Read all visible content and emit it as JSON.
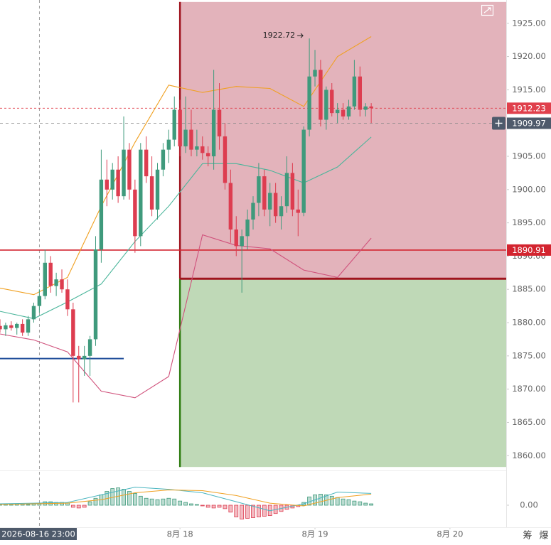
{
  "chart_data": {
    "type": "candlestick",
    "x": [
      "2026-08-16 16:00",
      "2026-08-16 17:00",
      "2026-08-16 18:00",
      "2026-08-16 19:00",
      "2026-08-16 20:00",
      "2026-08-16 21:00",
      "2026-08-16 22:00",
      "2026-08-16 23:00",
      "2026-08-17 00:00",
      "2026-08-17 01:00",
      "2026-08-17 02:00",
      "2026-08-17 03:00",
      "2026-08-17 04:00",
      "2026-08-17 05:00",
      "2026-08-17 06:00",
      "2026-08-17 07:00",
      "2026-08-17 08:00",
      "2026-08-17 09:00",
      "2026-08-17 10:00",
      "2026-08-17 11:00",
      "2026-08-17 12:00",
      "2026-08-17 13:00",
      "2026-08-17 14:00",
      "2026-08-17 15:00",
      "2026-08-17 16:00",
      "2026-08-17 17:00",
      "2026-08-17 18:00",
      "2026-08-17 19:00",
      "2026-08-17 20:00",
      "2026-08-17 21:00",
      "2026-08-17 22:00",
      "2026-08-17 23:00",
      "2026-08-18 00:00",
      "2026-08-18 01:00",
      "2026-08-18 02:00",
      "2026-08-18 03:00",
      "2026-08-18 04:00",
      "2026-08-18 05:00",
      "2026-08-18 06:00",
      "2026-08-18 07:00",
      "2026-08-18 08:00",
      "2026-08-18 09:00",
      "2026-08-18 10:00",
      "2026-08-18 11:00",
      "2026-08-18 12:00",
      "2026-08-18 13:00",
      "2026-08-18 14:00",
      "2026-08-18 15:00",
      "2026-08-18 16:00",
      "2026-08-18 17:00",
      "2026-08-18 18:00",
      "2026-08-18 19:00",
      "2026-08-18 20:00",
      "2026-08-18 21:00",
      "2026-08-18 22:00",
      "2026-08-18 23:00",
      "2026-08-19 00:00",
      "2026-08-19 01:00",
      "2026-08-19 02:00",
      "2026-08-19 03:00",
      "2026-08-19 04:00",
      "2026-08-19 05:00",
      "2026-08-19 06:00",
      "2026-08-19 07:00",
      "2026-08-19 08:00",
      "2026-08-19 09:00",
      "2026-08-19 10:00"
    ],
    "open": [
      1879.5,
      1879.0,
      1879.6,
      1879.2,
      1879.8,
      1878.5,
      1880.5,
      1882.5,
      1884.0,
      1889.0,
      1885.5,
      1886.5,
      1885.0,
      1882.0,
      1875.0,
      1874.5,
      1875.0,
      1877.5,
      1891.0,
      1901.5,
      1900.0,
      1903.0,
      1899.0,
      1906.0,
      1900.0,
      1893.0,
      1906.0,
      1902.0,
      1897.0,
      1903.0,
      1906.0,
      1907.5,
      1912.0,
      1906.5,
      1909.0,
      1906.0,
      1906.5,
      1905.5,
      1905.0,
      1912.0,
      1908.0,
      1901.0,
      1894.0,
      1891.5,
      1893.0,
      1895.5,
      1898.0,
      1902.0,
      1897.0,
      1899.5,
      1896.0,
      1897.5,
      1902.5,
      1897.0,
      1896.5,
      1909.0,
      1917.0,
      1918.0,
      1910.5,
      1915.0,
      1911.5,
      1912.0,
      1911.0,
      1912.5,
      1917.0,
      1912.0,
      1912.5
    ],
    "high": [
      1880.5,
      1880.0,
      1880.2,
      1880.0,
      1880.5,
      1881.0,
      1883.0,
      1885.0,
      1891.0,
      1890.0,
      1887.5,
      1888.0,
      1886.5,
      1883.0,
      1876.5,
      1876.5,
      1878.0,
      1893.0,
      1906.0,
      1904.5,
      1904.0,
      1905.0,
      1911.0,
      1907.0,
      1901.5,
      1907.0,
      1908.0,
      1905.0,
      1904.0,
      1907.0,
      1909.0,
      1914.0,
      1913.5,
      1914.0,
      1912.0,
      1909.0,
      1908.0,
      1906.5,
      1918.0,
      1916.0,
      1910.0,
      1903.0,
      1896.0,
      1894.0,
      1897.0,
      1899.0,
      1904.0,
      1903.0,
      1901.0,
      1901.0,
      1899.0,
      1905.0,
      1904.0,
      1900.0,
      1909.5,
      1922.72,
      1921.0,
      1919.5,
      1915.5,
      1916.0,
      1913.0,
      1913.0,
      1913.5,
      1919.5,
      1918.5,
      1913.0,
      1913.0
    ],
    "low": [
      1878.5,
      1878.0,
      1878.8,
      1878.2,
      1878.0,
      1878.0,
      1880.0,
      1881.5,
      1883.5,
      1884.5,
      1884.0,
      1884.5,
      1881.0,
      1868.0,
      1868.0,
      1872.0,
      1872.0,
      1876.5,
      1889.0,
      1897.5,
      1898.5,
      1898.0,
      1898.5,
      1898.5,
      1890.5,
      1891.5,
      1901.0,
      1896.0,
      1895.5,
      1902.0,
      1904.0,
      1906.5,
      1905.0,
      1905.5,
      1905.0,
      1905.0,
      1904.5,
      1903.5,
      1903.0,
      1906.0,
      1900.0,
      1892.0,
      1890.0,
      1884.5,
      1891.0,
      1894.0,
      1896.0,
      1896.0,
      1894.5,
      1895.0,
      1894.0,
      1896.5,
      1896.0,
      1893.0,
      1896.0,
      1908.0,
      1915.5,
      1909.5,
      1909.0,
      1911.0,
      1910.0,
      1910.5,
      1910.5,
      1912.0,
      1911.0,
      1911.0,
      1910.0
    ],
    "close": [
      1879.0,
      1879.6,
      1879.2,
      1879.8,
      1878.5,
      1880.5,
      1882.5,
      1884.0,
      1889.0,
      1885.5,
      1886.5,
      1885.0,
      1882.0,
      1875.0,
      1874.5,
      1875.0,
      1877.5,
      1891.0,
      1901.5,
      1900.0,
      1903.0,
      1899.0,
      1906.0,
      1900.0,
      1893.0,
      1906.0,
      1902.0,
      1897.0,
      1903.0,
      1906.0,
      1907.5,
      1912.0,
      1906.5,
      1909.0,
      1906.0,
      1906.5,
      1905.5,
      1905.0,
      1912.0,
      1908.0,
      1901.0,
      1894.0,
      1891.5,
      1893.0,
      1895.5,
      1898.0,
      1902.0,
      1897.0,
      1899.5,
      1896.0,
      1897.5,
      1902.5,
      1897.0,
      1896.5,
      1909.0,
      1917.0,
      1918.0,
      1910.5,
      1915.0,
      1911.5,
      1912.0,
      1911.0,
      1912.5,
      1917.0,
      1912.0,
      1912.5,
      1912.23
    ],
    "up_color": "#3f9a7c",
    "down_color": "#dd3d50",
    "xlim": [
      "2026-08-16 16:00",
      "2026-08-20 10:00"
    ],
    "xticks": [
      {
        "value": "2026-08-18 00:00",
        "label": "8月 18"
      },
      {
        "value": "2026-08-19 00:00",
        "label": "8月 19"
      },
      {
        "value": "2026-08-20 00:00",
        "label": "8月 20"
      }
    ],
    "ylim": [
      1858,
      1928.5
    ],
    "yticks": [
      {
        "value": 1860,
        "label": "1860.00"
      },
      {
        "value": 1865,
        "label": "1865.00"
      },
      {
        "value": 1870,
        "label": "1870.00"
      },
      {
        "value": 1875,
        "label": "1875.00"
      },
      {
        "value": 1880,
        "label": "1880.00"
      },
      {
        "value": 1885,
        "label": "1885.00"
      },
      {
        "value": 1890,
        "label": "1890.00"
      },
      {
        "value": 1895,
        "label": "1895.00"
      },
      {
        "value": 1900,
        "label": "1900.00"
      },
      {
        "value": 1905,
        "label": "1905.00"
      },
      {
        "value": 1910,
        "label": "1910.00"
      },
      {
        "value": 1915,
        "label": "1915.00"
      },
      {
        "value": 1920,
        "label": "1920.00"
      },
      {
        "value": 1925,
        "label": "1925.00"
      }
    ],
    "grid": false,
    "indicator_x": [
      "2026-08-16 16:00",
      "2026-08-16 22:00",
      "2026-08-17 04:00",
      "2026-08-17 10:00",
      "2026-08-17 16:00",
      "2026-08-17 22:00",
      "2026-08-18 04:00",
      "2026-08-18 10:00",
      "2026-08-18 16:00",
      "2026-08-18 22:00",
      "2026-08-19 04:00",
      "2026-08-19 10:00"
    ],
    "bands": [
      {
        "color": "#f0a020",
        "values": [
          1885.2,
          1884.2,
          1886.8,
          1897.5,
          1907.1,
          1915.7,
          1914.6,
          1915.5,
          1915.2,
          1912.5,
          1920.0,
          1923.0
        ]
      },
      {
        "color": "#49b59a",
        "values": [
          1881.7,
          1880.6,
          1883.1,
          1885.8,
          1892.2,
          1897.5,
          1903.9,
          1903.9,
          1902.9,
          1901.0,
          1903.4,
          1907.9
        ]
      },
      {
        "color": "#d0527c",
        "values": [
          1878.3,
          1877.4,
          1875.6,
          1869.7,
          1868.7,
          1871.9,
          1893.2,
          1891.6,
          1891.1,
          1887.9,
          1886.8,
          1892.7
        ]
      }
    ],
    "position": {
      "start": "2026-08-18 00:00",
      "stop": 1928.2,
      "entry": 1886.6,
      "target": 1858.3,
      "stop_color": "#e3b3bb",
      "target_color": "#bfd9b7",
      "stop_edge": "#a0141e",
      "target_edge": "#2f7d12"
    },
    "support_line": {
      "value": 1874.6,
      "end": "2026-08-17 14:00",
      "color": "#1f4e9a"
    },
    "price_line": {
      "value": 1890.91,
      "color": "#d3242f"
    },
    "last_price": {
      "value": 1912.23,
      "color": "#e0404c"
    },
    "crosshair": {
      "x": "2026-08-16 23:00",
      "y": 1909.97
    },
    "high_label": 1922.72,
    "macd": {
      "ylim": [
        -4,
        4
      ],
      "yticks": [
        {
          "value": 0,
          "label": "0.00"
        }
      ],
      "histogram": [
        0.1,
        0.15,
        0.1,
        0.2,
        0.15,
        0.1,
        0.2,
        0.3,
        0.5,
        0.5,
        0.4,
        0.4,
        0.3,
        -0.3,
        -0.4,
        -0.3,
        0.5,
        1.0,
        1.5,
        2.0,
        2.4,
        2.5,
        2.3,
        2.0,
        1.7,
        1.3,
        1.0,
        0.9,
        0.8,
        0.9,
        1.0,
        0.9,
        0.6,
        0.4,
        0.2,
        0.1,
        -0.1,
        -0.3,
        -0.4,
        -0.3,
        -0.5,
        -1.0,
        -1.7,
        -2.0,
        -1.9,
        -1.8,
        -1.7,
        -1.6,
        -1.5,
        -1.2,
        -0.9,
        -0.6,
        -0.4,
        -0.2,
        0.4,
        1.2,
        1.5,
        1.6,
        1.5,
        1.3,
        1.1,
        0.9,
        0.8,
        0.6,
        0.5,
        0.3,
        0.2
      ],
      "lines": [
        {
          "color": "#49b5c0",
          "values": [
            0.2,
            0.3,
            0.4,
            1.5,
            2.6,
            2.3,
            1.8,
            0.5,
            -0.8,
            0.2,
            1.9,
            1.7
          ]
        },
        {
          "color": "#f0a020",
          "values": [
            0.1,
            0.2,
            0.3,
            0.8,
            1.8,
            2.2,
            2.1,
            1.4,
            0.3,
            -0.1,
            1.1,
            1.6
          ]
        }
      ]
    }
  },
  "toolbar": [
    "筹",
    "爆"
  ]
}
